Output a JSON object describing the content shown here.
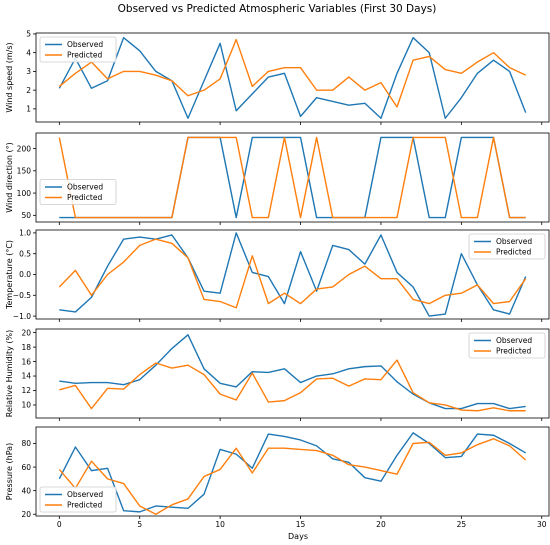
{
  "figure": {
    "title": "Observed vs Predicted Atmospheric Variables (First 30 Days)"
  },
  "colors": {
    "observed": "#1f77b4",
    "predicted": "#ff7f0e"
  },
  "chart_data": {
    "type": "line",
    "title": "Observed vs Predicted Atmospheric Variables (First 30 Days)",
    "xlabel": "Days",
    "xlim": [
      -1.45,
      30.45
    ],
    "xticks": [
      0,
      5,
      10,
      15,
      20,
      25,
      30
    ],
    "x": [
      0,
      1,
      2,
      3,
      4,
      5,
      6,
      7,
      8,
      9,
      10,
      11,
      12,
      13,
      14,
      15,
      16,
      17,
      18,
      19,
      20,
      21,
      22,
      23,
      24,
      25,
      26,
      27,
      28,
      29
    ],
    "panels": [
      {
        "ylabel": "Wind speed (m/s)",
        "ylim": [
          0.3,
          5.05
        ],
        "yticks": [
          1,
          2,
          3,
          4,
          5
        ],
        "legend": "top-left",
        "series": [
          {
            "name": "Observed",
            "color": "#1f77b4",
            "values": [
              2.1,
              3.7,
              2.1,
              2.5,
              4.8,
              4.1,
              3.0,
              2.5,
              0.5,
              2.5,
              4.5,
              0.9,
              1.8,
              2.7,
              2.9,
              0.6,
              1.6,
              1.4,
              1.2,
              1.3,
              0.5,
              2.9,
              4.8,
              4.0,
              0.5,
              1.6,
              2.9,
              3.6,
              3.0,
              0.8
            ]
          },
          {
            "name": "Predicted",
            "color": "#ff7f0e",
            "values": [
              2.2,
              2.9,
              3.5,
              2.6,
              3.0,
              3.0,
              2.8,
              2.5,
              1.7,
              2.0,
              2.6,
              4.7,
              2.2,
              3.0,
              3.2,
              3.2,
              2.0,
              2.0,
              2.7,
              2.0,
              2.4,
              1.1,
              3.6,
              3.8,
              3.1,
              2.9,
              3.5,
              4.0,
              3.2,
              2.8
            ]
          }
        ]
      },
      {
        "ylabel": "Wind direction (°)",
        "ylim": [
          35,
          235
        ],
        "yticks": [
          50,
          100,
          150,
          200
        ],
        "legend": "middle-left",
        "series": [
          {
            "name": "Observed",
            "color": "#1f77b4",
            "values": [
              45,
              45,
              45,
              45,
              45,
              45,
              45,
              45,
              225,
              225,
              225,
              45,
              225,
              225,
              225,
              225,
              45,
              45,
              45,
              45,
              225,
              225,
              225,
              45,
              45,
              225,
              225,
              225,
              45,
              45
            ]
          },
          {
            "name": "Predicted",
            "color": "#ff7f0e",
            "values": [
              225,
              45,
              45,
              45,
              45,
              45,
              45,
              45,
              225,
              225,
              225,
              225,
              45,
              45,
              225,
              45,
              225,
              45,
              45,
              45,
              45,
              45,
              225,
              225,
              225,
              45,
              45,
              225,
              45,
              45
            ]
          }
        ]
      },
      {
        "ylabel": "Temperature (°C)",
        "ylim": [
          -1.07,
          1.07
        ],
        "yticks": [
          -1.0,
          -0.5,
          0.0,
          0.5,
          1.0
        ],
        "legend": "top-right",
        "series": [
          {
            "name": "Observed",
            "color": "#1f77b4",
            "values": [
              -0.85,
              -0.9,
              -0.55,
              0.2,
              0.85,
              0.9,
              0.85,
              0.95,
              0.4,
              -0.4,
              -0.45,
              1.0,
              0.05,
              -0.05,
              -0.7,
              0.55,
              -0.4,
              0.7,
              0.6,
              0.25,
              0.95,
              0.05,
              -0.3,
              -1.0,
              -0.95,
              0.5,
              -0.25,
              -0.85,
              -0.95,
              -0.05
            ]
          },
          {
            "name": "Predicted",
            "color": "#ff7f0e",
            "values": [
              -0.3,
              0.1,
              -0.5,
              0.0,
              0.3,
              0.7,
              0.85,
              0.75,
              0.4,
              -0.6,
              -0.65,
              -0.8,
              0.45,
              -0.7,
              -0.45,
              -0.7,
              -0.35,
              -0.3,
              0.0,
              0.2,
              -0.1,
              -0.1,
              -0.6,
              -0.7,
              -0.5,
              -0.45,
              -0.25,
              -0.7,
              -0.65,
              -0.1
            ]
          }
        ]
      },
      {
        "ylabel": "Relative Humidity (%)",
        "ylim": [
          8.2,
          20.5
        ],
        "yticks": [
          10,
          12,
          14,
          16,
          18,
          20
        ],
        "legend": "top-right",
        "series": [
          {
            "name": "Observed",
            "color": "#1f77b4",
            "values": [
              13.3,
              13.0,
              13.1,
              13.1,
              12.8,
              13.5,
              15.5,
              17.8,
              19.7,
              15.0,
              13.0,
              12.5,
              14.6,
              14.5,
              15.0,
              13.1,
              14.0,
              14.3,
              15.0,
              15.3,
              15.4,
              13.2,
              11.5,
              10.3,
              9.5,
              9.5,
              10.2,
              10.2,
              9.5,
              9.8
            ]
          },
          {
            "name": "Predicted",
            "color": "#ff7f0e",
            "values": [
              12.1,
              12.7,
              9.5,
              12.3,
              12.2,
              14.2,
              15.8,
              15.1,
              15.5,
              14.2,
              11.5,
              10.7,
              14.4,
              10.4,
              10.6,
              11.7,
              13.6,
              13.7,
              12.6,
              13.6,
              13.5,
              16.2,
              11.7,
              10.3,
              10.0,
              9.3,
              9.2,
              9.6,
              9.2,
              9.2
            ]
          }
        ]
      },
      {
        "ylabel": "Pressure (hPa)",
        "ylim": [
          18.5,
          94
        ],
        "yticks": [
          20,
          40,
          60,
          80
        ],
        "legend": "bottom-left",
        "series": [
          {
            "name": "Observed",
            "color": "#1f77b4",
            "values": [
              50,
              77,
              57,
              59,
              23,
              22,
              27,
              26,
              25,
              37,
              75,
              71,
              59,
              88,
              86,
              83,
              78,
              67,
              64,
              51,
              48,
              70,
              89,
              80,
              68,
              69,
              88,
              87,
              80,
              72
            ]
          },
          {
            "name": "Predicted",
            "color": "#ff7f0e",
            "values": [
              58,
              42,
              65,
              50,
              46,
              27,
              20,
              28,
              33,
              52,
              58,
              76,
              55,
              76,
              76,
              75,
              74,
              70,
              62,
              60,
              57,
              54,
              80,
              81,
              70,
              72,
              79,
              84,
              78,
              66
            ]
          }
        ]
      }
    ]
  }
}
